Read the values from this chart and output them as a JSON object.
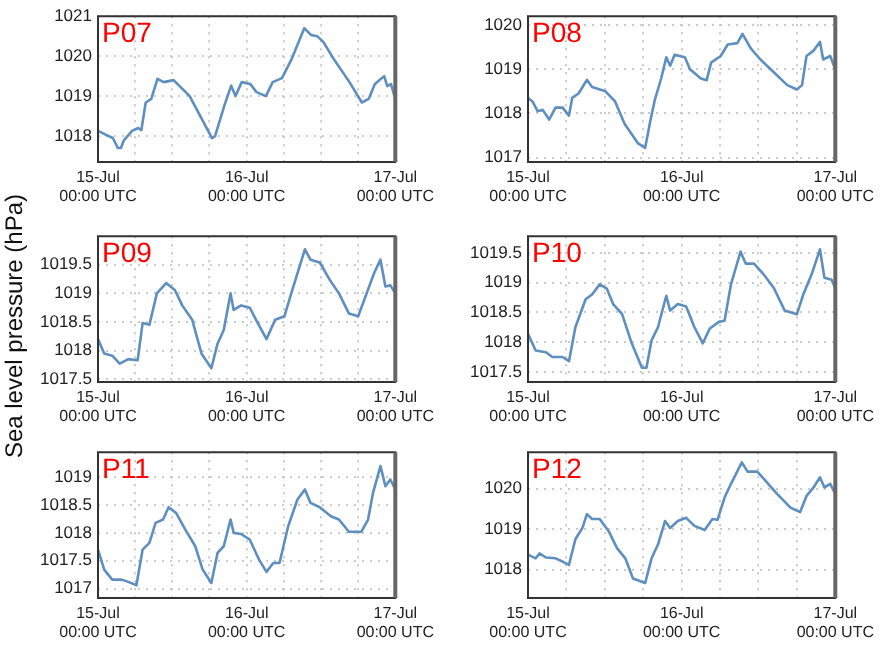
{
  "chart_data": [
    {
      "type": "line",
      "title": "P07",
      "ylabel": "Sea level pressure (hPa)",
      "x": [
        "--07-15T00:00",
        "--07-15T01:18",
        "--07-15T02:24",
        "--07-15T03:12",
        "--07-15T03:42",
        "--07-15T04:12",
        "--07-15T05:30",
        "--07-15T06:30",
        "--07-15T07:00",
        "--07-15T07:42",
        "--07-15T08:36",
        "--07-15T09:36",
        "--07-15T10:36",
        "--07-15T12:12",
        "--07-15T14:48",
        "--07-15T18:24",
        "--07-15T18:54",
        "--07-15T20:24",
        "--07-15T21:30",
        "--07-15T22:12",
        "--07-15T23:12",
        "--07-16T00:36",
        "--07-16T01:36",
        "--07-16T03:06",
        "--07-16T04:12",
        "--07-16T05:42",
        "--07-16T07:18",
        "--07-16T09:18",
        "--07-16T10:24",
        "--07-16T11:24",
        "--07-16T12:24",
        "--07-16T14:00",
        "--07-16T16:36",
        "--07-16T18:36",
        "--07-16T19:42",
        "--07-16T20:42",
        "--07-16T22:12",
        "--07-16T22:42",
        "--07-16T23:18",
        "--07-17T00:00"
      ],
      "series": [
        {
          "color": "#5f8fbf",
          "values": [
            1018.13,
            1018.03,
            1017.95,
            1017.7,
            1017.7,
            1017.9,
            1018.13,
            1018.2,
            1018.15,
            1018.84,
            1018.93,
            1019.43,
            1019.35,
            1019.4,
            1019.0,
            1017.95,
            1018.0,
            1018.76,
            1019.26,
            1019.0,
            1019.35,
            1019.3,
            1019.1,
            1019.0,
            1019.35,
            1019.45,
            1019.94,
            1020.7,
            1020.53,
            1020.5,
            1020.35,
            1019.94,
            1019.35,
            1018.84,
            1018.93,
            1019.3,
            1019.5,
            1019.25,
            1019.3,
            1018.93
          ]
        }
      ],
      "xlim": [
        "--07-15T00:00",
        "--07-17T00:00"
      ],
      "xticks": [
        {
          "value": "--07-15T00:00",
          "label": "15-Jul\n00:00 UTC"
        },
        {
          "value": "--07-15T06:00",
          "label": null
        },
        {
          "value": "--07-15T12:00",
          "label": null
        },
        {
          "value": "--07-15T18:00",
          "label": null
        },
        {
          "value": "--07-16T00:00",
          "label": "16-Jul\n00:00 UTC"
        },
        {
          "value": "--07-16T06:00",
          "label": null
        },
        {
          "value": "--07-16T12:00",
          "label": null
        },
        {
          "value": "--07-16T18:00",
          "label": null
        },
        {
          "value": "--07-17T00:00",
          "label": "17-Jul\n00:00 UTC"
        }
      ],
      "ylim": [
        1017.35,
        1021
      ],
      "yticks": [
        1018,
        1019,
        1020,
        1021
      ],
      "grid": true
    },
    {
      "type": "line",
      "title": "P08",
      "x": [
        "--07-15T00:00",
        "--07-15T00:42",
        "--07-15T01:30",
        "--07-15T02:18",
        "--07-15T03:18",
        "--07-15T04:18",
        "--07-15T05:24",
        "--07-15T06:24",
        "--07-15T06:54",
        "--07-15T07:54",
        "--07-15T09:12",
        "--07-15T10:00",
        "--07-15T12:06",
        "--07-15T13:36",
        "--07-15T15:06",
        "--07-15T17:12",
        "--07-15T18:18",
        "--07-15T19:06",
        "--07-15T19:48",
        "--07-15T20:48",
        "--07-15T21:36",
        "--07-15T22:12",
        "--07-15T22:54",
        "--07-16T00:30",
        "--07-16T01:18",
        "--07-16T03:00",
        "--07-16T03:54",
        "--07-16T04:36",
        "--07-16T06:06",
        "--07-16T07:12",
        "--07-16T08:42",
        "--07-16T09:30",
        "--07-16T10:48",
        "--07-16T12:18",
        "--07-16T13:54",
        "--07-16T16:30",
        "--07-16T18:00",
        "--07-16T18:48",
        "--07-16T19:30",
        "--07-16T20:36",
        "--07-16T21:36",
        "--07-16T22:06",
        "--07-16T23:12",
        "--07-17T00:00"
      ],
      "series": [
        {
          "color": "#5f8fbf",
          "values": [
            1018.35,
            1018.27,
            1018.05,
            1018.08,
            1017.86,
            1018.13,
            1018.13,
            1017.95,
            1018.35,
            1018.45,
            1018.76,
            1018.6,
            1018.5,
            1018.27,
            1017.76,
            1017.32,
            1017.22,
            1017.83,
            1018.3,
            1018.79,
            1019.27,
            1019.08,
            1019.33,
            1019.27,
            1019.0,
            1018.79,
            1018.75,
            1019.15,
            1019.3,
            1019.56,
            1019.59,
            1019.8,
            1019.47,
            1019.22,
            1019.0,
            1018.64,
            1018.54,
            1018.64,
            1019.3,
            1019.42,
            1019.62,
            1019.22,
            1019.3,
            1019.0
          ]
        }
      ],
      "xlim": [
        "--07-15T00:00",
        "--07-17T00:00"
      ],
      "xticks": [
        {
          "value": "--07-15T00:00",
          "label": "15-Jul\n00:00 UTC"
        },
        {
          "value": "--07-15T06:00",
          "label": null
        },
        {
          "value": "--07-15T12:00",
          "label": null
        },
        {
          "value": "--07-15T18:00",
          "label": null
        },
        {
          "value": "--07-16T00:00",
          "label": "16-Jul\n00:00 UTC"
        },
        {
          "value": "--07-16T06:00",
          "label": null
        },
        {
          "value": "--07-16T12:00",
          "label": null
        },
        {
          "value": "--07-16T18:00",
          "label": null
        },
        {
          "value": "--07-17T00:00",
          "label": "17-Jul\n00:00 UTC"
        }
      ],
      "ylim": [
        1016.9,
        1020.2
      ],
      "yticks": [
        1017,
        1018,
        1019,
        1020
      ],
      "grid": true
    },
    {
      "type": "line",
      "title": "P09",
      "x": [
        "--07-15T00:00",
        "--07-15T01:00",
        "--07-15T02:18",
        "--07-15T03:30",
        "--07-15T04:54",
        "--07-15T06:24",
        "--07-15T07:12",
        "--07-15T08:18",
        "--07-15T09:30",
        "--07-15T11:00",
        "--07-15T12:24",
        "--07-15T13:36",
        "--07-15T15:12",
        "--07-15T16:42",
        "--07-15T18:18",
        "--07-15T19:18",
        "--07-15T20:18",
        "--07-15T21:24",
        "--07-15T21:54",
        "--07-15T23:06",
        "--07-16T00:30",
        "--07-16T01:30",
        "--07-16T03:12",
        "--07-16T04:36",
        "--07-16T06:06",
        "--07-16T07:12",
        "--07-16T08:24",
        "--07-16T09:24",
        "--07-16T10:18",
        "--07-16T11:48",
        "--07-16T13:24",
        "--07-16T14:54",
        "--07-16T16:30",
        "--07-16T18:00",
        "--07-16T19:00",
        "--07-16T20:36",
        "--07-16T21:36",
        "--07-16T22:24",
        "--07-16T23:12",
        "--07-17T00:00"
      ],
      "series": [
        {
          "color": "#5f8fbf",
          "values": [
            1018.2,
            1017.95,
            1017.91,
            1017.77,
            1017.85,
            1017.83,
            1018.48,
            1018.45,
            1019.0,
            1019.18,
            1019.06,
            1018.79,
            1018.54,
            1017.95,
            1017.69,
            1018.12,
            1018.36,
            1019.0,
            1018.71,
            1018.79,
            1018.75,
            1018.54,
            1018.2,
            1018.54,
            1018.6,
            1019.0,
            1019.42,
            1019.77,
            1019.59,
            1019.54,
            1019.24,
            1019.0,
            1018.65,
            1018.6,
            1018.89,
            1019.36,
            1019.59,
            1019.12,
            1019.14,
            1019.0
          ]
        }
      ],
      "xlim": [
        "--07-15T00:00",
        "--07-17T00:00"
      ],
      "xticks": [
        {
          "value": "--07-15T00:00",
          "label": "15-Jul\n00:00 UTC"
        },
        {
          "value": "--07-15T06:00",
          "label": null
        },
        {
          "value": "--07-15T12:00",
          "label": null
        },
        {
          "value": "--07-15T18:00",
          "label": null
        },
        {
          "value": "--07-16T00:00",
          "label": "16-Jul\n00:00 UTC"
        },
        {
          "value": "--07-16T06:00",
          "label": null
        },
        {
          "value": "--07-16T12:00",
          "label": null
        },
        {
          "value": "--07-16T18:00",
          "label": null
        },
        {
          "value": "--07-17T00:00",
          "label": "17-Jul\n00:00 UTC"
        }
      ],
      "ylim": [
        1017.45,
        1020
      ],
      "yticks": [
        1017.5,
        1018,
        1018.5,
        1019,
        1019.5
      ],
      "grid": true
    },
    {
      "type": "line",
      "title": "P10",
      "x": [
        "--07-15T00:00",
        "--07-15T01:12",
        "--07-15T02:48",
        "--07-15T03:48",
        "--07-15T05:24",
        "--07-15T06:24",
        "--07-15T07:24",
        "--07-15T09:00",
        "--07-15T10:00",
        "--07-15T11:12",
        "--07-15T12:18",
        "--07-15T13:18",
        "--07-15T14:42",
        "--07-15T16:12",
        "--07-15T17:48",
        "--07-15T18:30",
        "--07-15T19:18",
        "--07-15T20:18",
        "--07-15T21:36",
        "--07-15T22:12",
        "--07-15T23:24",
        "--07-16T00:42",
        "--07-16T02:00",
        "--07-16T03:18",
        "--07-16T04:24",
        "--07-16T05:48",
        "--07-16T06:42",
        "--07-16T07:42",
        "--07-16T09:12",
        "--07-16T10:00",
        "--07-16T11:18",
        "--07-16T12:48",
        "--07-16T14:24",
        "--07-16T16:06",
        "--07-16T18:00",
        "--07-16T19:00",
        "--07-16T20:18",
        "--07-16T21:36",
        "--07-16T22:18",
        "--07-16T23:24",
        "--07-17T00:00"
      ],
      "series": [
        {
          "color": "#5f8fbf",
          "values": [
            1018.14,
            1017.86,
            1017.83,
            1017.75,
            1017.75,
            1017.68,
            1018.25,
            1018.72,
            1018.8,
            1018.97,
            1018.9,
            1018.64,
            1018.47,
            1017.98,
            1017.57,
            1017.57,
            1018.03,
            1018.25,
            1018.78,
            1018.53,
            1018.64,
            1018.6,
            1018.25,
            1017.98,
            1018.23,
            1018.34,
            1018.36,
            1018.97,
            1019.52,
            1019.32,
            1019.32,
            1019.14,
            1018.91,
            1018.53,
            1018.47,
            1018.8,
            1019.14,
            1019.56,
            1019.08,
            1019.05,
            1018.91
          ]
        }
      ],
      "xlim": [
        "--07-15T00:00",
        "--07-17T00:00"
      ],
      "xticks": [
        {
          "value": "--07-15T00:00",
          "label": "15-Jul\n00:00 UTC"
        },
        {
          "value": "--07-15T06:00",
          "label": null
        },
        {
          "value": "--07-15T12:00",
          "label": null
        },
        {
          "value": "--07-15T18:00",
          "label": null
        },
        {
          "value": "--07-16T00:00",
          "label": "16-Jul\n00:00 UTC"
        },
        {
          "value": "--07-16T06:00",
          "label": null
        },
        {
          "value": "--07-16T12:00",
          "label": null
        },
        {
          "value": "--07-16T18:00",
          "label": null
        },
        {
          "value": "--07-17T00:00",
          "label": "17-Jul\n00:00 UTC"
        }
      ],
      "ylim": [
        1017.33,
        1019.78
      ],
      "yticks": [
        1017.5,
        1018,
        1018.5,
        1019,
        1019.5
      ],
      "grid": true
    },
    {
      "type": "line",
      "title": "P11",
      "x": [
        "--07-15T00:00",
        "--07-15T01:00",
        "--07-15T02:18",
        "--07-15T03:48",
        "--07-15T04:54",
        "--07-15T06:12",
        "--07-15T07:12",
        "--07-15T08:18",
        "--07-15T09:18",
        "--07-15T10:30",
        "--07-15T11:24",
        "--07-15T12:36",
        "--07-15T14:06",
        "--07-15T15:42",
        "--07-15T16:54",
        "--07-15T18:18",
        "--07-15T19:18",
        "--07-15T20:18",
        "--07-15T21:24",
        "--07-15T21:54",
        "--07-15T23:06",
        "--07-16T00:30",
        "--07-16T02:00",
        "--07-16T03:12",
        "--07-16T04:18",
        "--07-16T05:18",
        "--07-16T06:42",
        "--07-16T08:12",
        "--07-16T09:24",
        "--07-16T10:18",
        "--07-16T11:48",
        "--07-16T13:36",
        "--07-16T14:54",
        "--07-16T16:30",
        "--07-16T18:30",
        "--07-16T19:36",
        "--07-16T20:24",
        "--07-16T21:36",
        "--07-16T22:24",
        "--07-16T23:12",
        "--07-17T00:00"
      ],
      "series": [
        {
          "color": "#5f8fbf",
          "values": [
            1017.7,
            1017.34,
            1017.16,
            1017.16,
            1017.12,
            1017.06,
            1017.7,
            1017.82,
            1018.18,
            1018.24,
            1018.46,
            1018.36,
            1018.06,
            1017.76,
            1017.34,
            1017.1,
            1017.64,
            1017.76,
            1018.24,
            1018.0,
            1017.98,
            1017.88,
            1017.52,
            1017.3,
            1017.46,
            1017.46,
            1018.12,
            1018.6,
            1018.78,
            1018.54,
            1018.46,
            1018.3,
            1018.24,
            1018.02,
            1018.02,
            1018.24,
            1018.72,
            1019.2,
            1018.84,
            1018.96,
            1018.78
          ]
        }
      ],
      "xlim": [
        "--07-15T00:00",
        "--07-17T00:00"
      ],
      "xticks": [
        {
          "value": "--07-15T00:00",
          "label": "15-Jul\n00:00 UTC"
        },
        {
          "value": "--07-15T06:00",
          "label": null
        },
        {
          "value": "--07-15T12:00",
          "label": null
        },
        {
          "value": "--07-15T18:00",
          "label": null
        },
        {
          "value": "--07-16T00:00",
          "label": "16-Jul\n00:00 UTC"
        },
        {
          "value": "--07-16T06:00",
          "label": null
        },
        {
          "value": "--07-16T12:00",
          "label": null
        },
        {
          "value": "--07-16T18:00",
          "label": null
        },
        {
          "value": "--07-17T00:00",
          "label": "17-Jul\n00:00 UTC"
        }
      ],
      "ylim": [
        1016.83,
        1019.45
      ],
      "yticks": [
        1017,
        1017.5,
        1018,
        1018.5,
        1019
      ],
      "grid": true
    },
    {
      "type": "line",
      "title": "P12",
      "x": [
        "--07-15T00:00",
        "--07-15T01:12",
        "--07-15T01:48",
        "--07-15T02:48",
        "--07-15T04:18",
        "--07-15T05:24",
        "--07-15T06:24",
        "--07-15T07:24",
        "--07-15T08:30",
        "--07-15T09:12",
        "--07-15T10:00",
        "--07-15T11:12",
        "--07-15T12:36",
        "--07-15T13:54",
        "--07-15T15:12",
        "--07-15T16:24",
        "--07-15T18:18",
        "--07-15T19:18",
        "--07-15T20:18",
        "--07-15T21:24",
        "--07-15T22:12",
        "--07-15T23:24",
        "--07-16T00:42",
        "--07-16T02:00",
        "--07-16T03:36",
        "--07-16T04:48",
        "--07-16T05:36",
        "--07-16T06:42",
        "--07-16T07:42",
        "--07-16T09:24",
        "--07-16T10:18",
        "--07-16T11:48",
        "--07-16T12:48",
        "--07-16T14:54",
        "--07-16T17:00",
        "--07-16T18:30",
        "--07-16T19:30",
        "--07-16T20:36",
        "--07-16T21:36",
        "--07-16T22:18",
        "--07-16T23:12",
        "--07-17T00:00"
      ],
      "series": [
        {
          "color": "#5f8fbf",
          "values": [
            1018.37,
            1018.28,
            1018.4,
            1018.3,
            1018.28,
            1018.2,
            1018.12,
            1018.75,
            1019.03,
            1019.37,
            1019.25,
            1019.25,
            1018.95,
            1018.53,
            1018.28,
            1017.78,
            1017.67,
            1018.28,
            1018.62,
            1019.2,
            1019.03,
            1019.2,
            1019.28,
            1019.08,
            1018.98,
            1019.25,
            1019.23,
            1019.78,
            1020.12,
            1020.65,
            1020.42,
            1020.42,
            1020.25,
            1019.87,
            1019.53,
            1019.42,
            1019.82,
            1020.03,
            1020.28,
            1020.03,
            1020.12,
            1019.87
          ]
        }
      ],
      "xlim": [
        "--07-15T00:00",
        "--07-17T00:00"
      ],
      "xticks": [
        {
          "value": "--07-15T00:00",
          "label": "15-Jul\n00:00 UTC"
        },
        {
          "value": "--07-15T06:00",
          "label": null
        },
        {
          "value": "--07-15T12:00",
          "label": null
        },
        {
          "value": "--07-15T18:00",
          "label": null
        },
        {
          "value": "--07-16T00:00",
          "label": "16-Jul\n00:00 UTC"
        },
        {
          "value": "--07-16T06:00",
          "label": null
        },
        {
          "value": "--07-16T12:00",
          "label": null
        },
        {
          "value": "--07-16T18:00",
          "label": null
        },
        {
          "value": "--07-17T00:00",
          "label": "17-Jul\n00:00 UTC"
        }
      ],
      "ylim": [
        1017.3,
        1020.9
      ],
      "yticks": [
        1018,
        1019,
        1020
      ],
      "grid": true
    }
  ]
}
